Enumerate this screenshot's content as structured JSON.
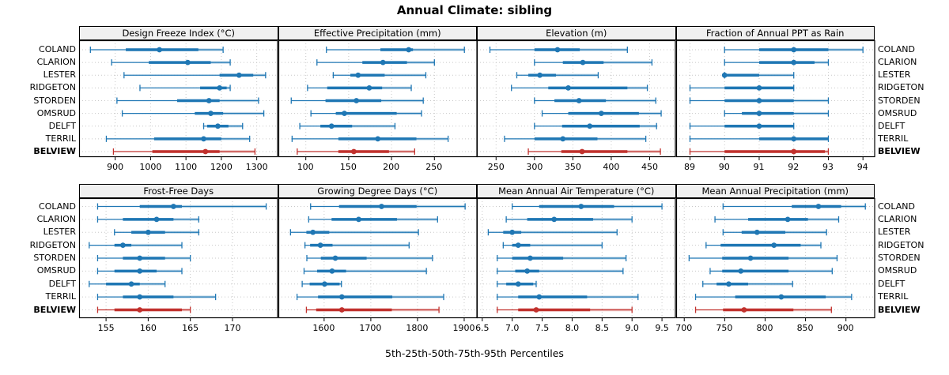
{
  "title": "Annual Climate: sibling",
  "subtitle": "5th-25th-50th-75th-95th Percentiles",
  "percentiles": [
    5,
    25,
    50,
    75,
    95
  ],
  "locations": [
    "COLAND",
    "CLARION",
    "LESTER",
    "RIDGETON",
    "STORDEN",
    "OMSRUD",
    "DELFT",
    "TERRIL",
    "BELVIEW"
  ],
  "highlight": "BELVIEW",
  "colors": {
    "series": "#1f77b4",
    "highlight": "#c1312d",
    "header_bg": "#f0f0f0",
    "grid": "#c8c8c8",
    "border": "#000000"
  },
  "chart_data": [
    {
      "type": "dot-whisker",
      "title": "Design Freeze Index (°C)",
      "ticks": [
        900,
        1000,
        1100,
        1200,
        1300
      ],
      "tick_labels": [
        "900",
        "1000",
        "1100",
        "1200",
        "1300"
      ],
      "xlim": [
        798,
        1360
      ],
      "series": [
        {
          "name": "COLAND",
          "values": [
            830,
            930,
            1025,
            1135,
            1205
          ]
        },
        {
          "name": "CLARION",
          "values": [
            890,
            995,
            1105,
            1170,
            1225
          ]
        },
        {
          "name": "LESTER",
          "values": [
            925,
            1195,
            1250,
            1290,
            1325
          ]
        },
        {
          "name": "RIDGETON",
          "values": [
            970,
            1140,
            1195,
            1215,
            1225
          ]
        },
        {
          "name": "STORDEN",
          "values": [
            905,
            1075,
            1165,
            1195,
            1305
          ]
        },
        {
          "name": "OMSRUD",
          "values": [
            920,
            1125,
            1170,
            1205,
            1320
          ]
        },
        {
          "name": "DELFT",
          "values": [
            1150,
            1160,
            1190,
            1220,
            1260
          ]
        },
        {
          "name": "TERRIL",
          "values": [
            875,
            1010,
            1150,
            1200,
            1280
          ]
        },
        {
          "name": "BELVIEW",
          "values": [
            895,
            1005,
            1155,
            1195,
            1295
          ]
        }
      ]
    },
    {
      "type": "dot-whisker",
      "title": "Effective Precipitation (mm)",
      "ticks": [
        100,
        150,
        200,
        250
      ],
      "tick_labels": [
        "100",
        "150",
        "200",
        "250"
      ],
      "xlim": [
        68,
        300
      ],
      "series": [
        {
          "name": "COLAND",
          "values": [
            124,
            187,
            220,
            225,
            285
          ]
        },
        {
          "name": "CLARION",
          "values": [
            113,
            166,
            190,
            218,
            250
          ]
        },
        {
          "name": "LESTER",
          "values": [
            132,
            152,
            161,
            192,
            240
          ]
        },
        {
          "name": "RIDGETON",
          "values": [
            102,
            125,
            174,
            189,
            223
          ]
        },
        {
          "name": "STORDEN",
          "values": [
            83,
            123,
            159,
            188,
            237
          ]
        },
        {
          "name": "OMSRUD",
          "values": [
            106,
            135,
            145,
            206,
            235
          ]
        },
        {
          "name": "DELFT",
          "values": [
            93,
            117,
            130,
            154,
            204
          ]
        },
        {
          "name": "TERRIL",
          "values": [
            84,
            138,
            184,
            229,
            266
          ]
        },
        {
          "name": "BELVIEW",
          "values": [
            90,
            138,
            156,
            197,
            227
          ]
        }
      ]
    },
    {
      "type": "dot-whisker",
      "title": "Elevation (m)",
      "ticks": [
        250,
        300,
        350,
        400,
        450
      ],
      "tick_labels": [
        "250",
        "300",
        "350",
        "400",
        "450"
      ],
      "xlim": [
        225,
        484
      ],
      "series": [
        {
          "name": "COLAND",
          "values": [
            242,
            300,
            330,
            359,
            421
          ]
        },
        {
          "name": "CLARION",
          "values": [
            300,
            337,
            363,
            390,
            453
          ]
        },
        {
          "name": "LESTER",
          "values": [
            277,
            292,
            307,
            328,
            383
          ]
        },
        {
          "name": "RIDGETON",
          "values": [
            270,
            318,
            344,
            421,
            447
          ]
        },
        {
          "name": "STORDEN",
          "values": [
            300,
            326,
            358,
            393,
            458
          ]
        },
        {
          "name": "OMSRUD",
          "values": [
            310,
            344,
            387,
            436,
            465
          ]
        },
        {
          "name": "DELFT",
          "values": [
            300,
            336,
            372,
            437,
            459
          ]
        },
        {
          "name": "TERRIL",
          "values": [
            261,
            300,
            337,
            382,
            445
          ]
        },
        {
          "name": "BELVIEW",
          "values": [
            292,
            335,
            362,
            421,
            464
          ]
        }
      ]
    },
    {
      "type": "dot-whisker",
      "title": "Fraction of Annual PPT as Rain",
      "ticks": [
        89,
        90,
        91,
        92,
        93,
        94
      ],
      "tick_labels": [
        "89",
        "90",
        "91",
        "92",
        "93",
        "94"
      ],
      "xlim": [
        88.6,
        94.35
      ],
      "series": [
        {
          "name": "COLAND",
          "values": [
            90,
            91,
            92,
            93,
            94
          ]
        },
        {
          "name": "CLARION",
          "values": [
            90,
            91,
            92,
            92.6,
            93
          ]
        },
        {
          "name": "LESTER",
          "values": [
            90,
            90,
            90,
            91,
            92
          ]
        },
        {
          "name": "RIDGETON",
          "values": [
            89,
            90,
            91,
            92,
            92
          ]
        },
        {
          "name": "STORDEN",
          "values": [
            89,
            90,
            91,
            92,
            93
          ]
        },
        {
          "name": "OMSRUD",
          "values": [
            90,
            90.5,
            91,
            92,
            93
          ]
        },
        {
          "name": "DELFT",
          "values": [
            89,
            90,
            91,
            92,
            92
          ]
        },
        {
          "name": "TERRIL",
          "values": [
            89,
            91,
            92,
            93,
            93
          ]
        },
        {
          "name": "BELVIEW",
          "values": [
            89,
            90,
            92,
            92.9,
            93
          ]
        }
      ]
    },
    {
      "type": "dot-whisker",
      "title": "Frost-Free Days",
      "ticks": [
        155,
        160,
        165,
        170
      ],
      "tick_labels": [
        "155",
        "160",
        "165",
        "170"
      ],
      "xlim": [
        151.8,
        175.4
      ],
      "series": [
        {
          "name": "COLAND",
          "values": [
            154,
            159,
            163,
            164,
            174
          ]
        },
        {
          "name": "CLARION",
          "values": [
            154,
            157,
            161,
            163,
            166
          ]
        },
        {
          "name": "LESTER",
          "values": [
            156,
            158,
            160,
            162,
            166
          ]
        },
        {
          "name": "RIDGETON",
          "values": [
            153,
            156,
            157,
            158,
            164
          ]
        },
        {
          "name": "STORDEN",
          "values": [
            154,
            157,
            159,
            162,
            165
          ]
        },
        {
          "name": "OMSRUD",
          "values": [
            154,
            156,
            159,
            161,
            164
          ]
        },
        {
          "name": "DELFT",
          "values": [
            153,
            155,
            158,
            159,
            162
          ]
        },
        {
          "name": "TERRIL",
          "values": [
            154,
            157,
            159,
            163,
            168
          ]
        },
        {
          "name": "BELVIEW",
          "values": [
            154,
            156,
            159,
            164,
            165
          ]
        }
      ]
    },
    {
      "type": "dot-whisker",
      "title": "Growing Degree Days (°C)",
      "ticks": [
        1600,
        1700,
        1800,
        1900
      ],
      "tick_labels": [
        "1600",
        "1700",
        "1800",
        "1900"
      ],
      "xlim": [
        1502,
        1928
      ],
      "series": [
        {
          "name": "COLAND",
          "values": [
            1571,
            1632,
            1723,
            1798,
            1902
          ]
        },
        {
          "name": "CLARION",
          "values": [
            1567,
            1616,
            1674,
            1756,
            1843
          ]
        },
        {
          "name": "LESTER",
          "values": [
            1528,
            1562,
            1576,
            1611,
            1802
          ]
        },
        {
          "name": "RIDGETON",
          "values": [
            1559,
            1570,
            1592,
            1618,
            1782
          ]
        },
        {
          "name": "STORDEN",
          "values": [
            1563,
            1593,
            1624,
            1691,
            1832
          ]
        },
        {
          "name": "OMSRUD",
          "values": [
            1557,
            1585,
            1617,
            1647,
            1819
          ]
        },
        {
          "name": "DELFT",
          "values": [
            1553,
            1569,
            1601,
            1633,
            1637
          ]
        },
        {
          "name": "TERRIL",
          "values": [
            1542,
            1587,
            1638,
            1746,
            1856
          ]
        },
        {
          "name": "BELVIEW",
          "values": [
            1562,
            1583,
            1638,
            1745,
            1846
          ]
        }
      ]
    },
    {
      "type": "dot-whisker",
      "title": "Mean Annual Air Temperature (°C)",
      "ticks": [
        6.5,
        7.0,
        7.5,
        8.0,
        8.5,
        9.0,
        9.5
      ],
      "tick_labels": [
        "6.5",
        "7.0",
        "7.5",
        "8.0",
        "8.5",
        "9.0",
        "9.5"
      ],
      "xlim": [
        6.41,
        9.73
      ],
      "series": [
        {
          "name": "COLAND",
          "values": [
            7.0,
            7.45,
            8.15,
            8.7,
            9.5
          ]
        },
        {
          "name": "CLARION",
          "values": [
            6.9,
            7.25,
            7.7,
            8.35,
            9.0
          ]
        },
        {
          "name": "LESTER",
          "values": [
            6.6,
            6.85,
            7.0,
            7.15,
            8.75
          ]
        },
        {
          "name": "RIDGETON",
          "values": [
            6.85,
            7.0,
            7.1,
            7.3,
            8.5
          ]
        },
        {
          "name": "STORDEN",
          "values": [
            6.75,
            7.0,
            7.3,
            7.85,
            8.9
          ]
        },
        {
          "name": "OMSRUD",
          "values": [
            6.75,
            7.05,
            7.25,
            7.45,
            8.85
          ]
        },
        {
          "name": "DELFT",
          "values": [
            6.75,
            6.9,
            7.1,
            7.35,
            7.4
          ]
        },
        {
          "name": "TERRIL",
          "values": [
            6.75,
            7.1,
            7.45,
            8.25,
            9.1
          ]
        },
        {
          "name": "BELVIEW",
          "values": [
            6.75,
            7.1,
            7.4,
            8.3,
            9.0
          ]
        }
      ]
    },
    {
      "type": "dot-whisker",
      "title": "Mean Annual Precipitation (mm)",
      "ticks": [
        700,
        750,
        800,
        850,
        900
      ],
      "tick_labels": [
        "700",
        "750",
        "800",
        "850",
        "900"
      ],
      "xlim": [
        690,
        936
      ],
      "series": [
        {
          "name": "COLAND",
          "values": [
            748,
            833,
            866,
            894,
            924
          ]
        },
        {
          "name": "CLARION",
          "values": [
            738,
            779,
            828,
            853,
            891
          ]
        },
        {
          "name": "LESTER",
          "values": [
            748,
            771,
            790,
            825,
            876
          ]
        },
        {
          "name": "RIDGETON",
          "values": [
            727,
            745,
            811,
            844,
            869
          ]
        },
        {
          "name": "STORDEN",
          "values": [
            706,
            747,
            782,
            829,
            889
          ]
        },
        {
          "name": "OMSRUD",
          "values": [
            732,
            747,
            770,
            829,
            883
          ]
        },
        {
          "name": "DELFT",
          "values": [
            723,
            740,
            755,
            779,
            834
          ]
        },
        {
          "name": "TERRIL",
          "values": [
            714,
            763,
            820,
            875,
            907
          ]
        },
        {
          "name": "BELVIEW",
          "values": [
            714,
            748,
            774,
            835,
            882
          ]
        }
      ]
    }
  ]
}
